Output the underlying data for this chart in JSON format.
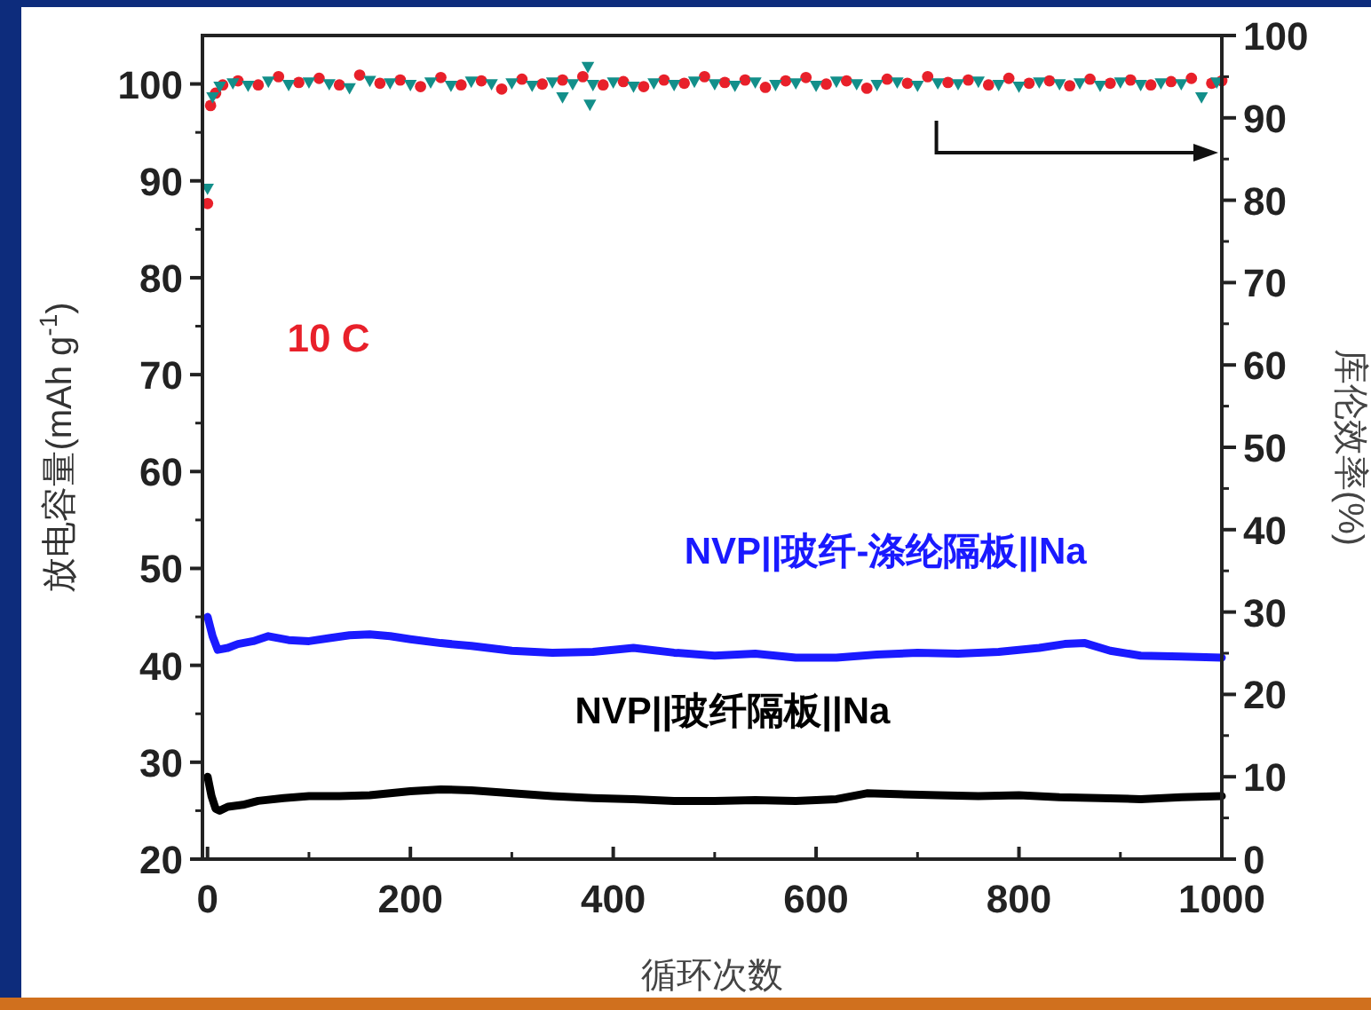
{
  "chart_data": {
    "type": "line",
    "xlabel": "循环次数",
    "ylabel": "放电容量(mAh g$^{-1}$)",
    "y2label": "库伦效率(%)",
    "annotations": [
      "10 C"
    ],
    "xlim": [
      -5,
      1000
    ],
    "xticks": [
      0,
      200,
      400,
      600,
      800,
      1000
    ],
    "ylim": [
      20,
      105
    ],
    "yticks": [
      20,
      30,
      40,
      50,
      60,
      70,
      80,
      90,
      100
    ],
    "y2lim": [
      0,
      100
    ],
    "y2ticks": [
      0,
      10,
      20,
      30,
      40,
      50,
      60,
      70,
      80,
      90,
      100
    ],
    "grid": false,
    "series": [
      {
        "name": "NVP||玻纤-涤纶隔板||Na",
        "marker": "none",
        "color": "#1a1aff",
        "x": [
          0,
          5,
          10,
          20,
          30,
          45,
          60,
          80,
          100,
          120,
          140,
          160,
          180,
          200,
          230,
          260,
          300,
          340,
          380,
          420,
          460,
          500,
          540,
          580,
          620,
          660,
          700,
          740,
          780,
          820,
          845,
          865,
          890,
          920,
          960,
          1000
        ],
        "values": [
          45,
          43,
          41.6,
          41.8,
          42.2,
          42.5,
          43,
          42.6,
          42.5,
          42.8,
          43.1,
          43.2,
          43,
          42.7,
          42.3,
          42,
          41.5,
          41.3,
          41.4,
          41.8,
          41.3,
          41,
          41.2,
          40.8,
          40.8,
          41.1,
          41.3,
          41.2,
          41.4,
          41.8,
          42.2,
          42.3,
          41.5,
          41,
          40.9,
          40.8
        ]
      },
      {
        "name": "NVP||玻纤隔板||Na",
        "marker": "none",
        "color": "#000000",
        "x": [
          0,
          4,
          8,
          12,
          20,
          35,
          50,
          75,
          100,
          130,
          160,
          200,
          230,
          260,
          300,
          340,
          380,
          420,
          460,
          500,
          540,
          580,
          620,
          650,
          680,
          720,
          760,
          800,
          840,
          880,
          920,
          960,
          1000
        ],
        "values": [
          28.5,
          26.5,
          25.2,
          25,
          25.4,
          25.6,
          26,
          26.3,
          26.5,
          26.5,
          26.6,
          27,
          27.2,
          27.1,
          26.8,
          26.5,
          26.3,
          26.2,
          26,
          26,
          26.1,
          26,
          26.2,
          26.8,
          26.7,
          26.6,
          26.5,
          26.6,
          26.4,
          26.3,
          26.2,
          26.4,
          26.5
        ]
      },
      {
        "type": "scatter",
        "axis": "y2",
        "marker": "circle",
        "color": "#e8202a",
        "x": [
          0,
          3,
          8,
          15,
          30,
          50,
          70,
          90,
          110,
          130,
          150,
          170,
          190,
          210,
          230,
          250,
          270,
          290,
          310,
          330,
          350,
          370,
          390,
          410,
          430,
          450,
          470,
          490,
          510,
          530,
          550,
          570,
          590,
          610,
          630,
          650,
          670,
          690,
          710,
          730,
          750,
          770,
          790,
          810,
          830,
          850,
          870,
          890,
          910,
          930,
          950,
          970,
          990,
          1000
        ],
        "values": [
          79.6,
          91.5,
          93,
          94,
          94.5,
          94,
          95,
          94.3,
          94.8,
          94,
          95.2,
          94.2,
          94.6,
          93.8,
          94.9,
          94,
          94.5,
          93.5,
          94.7,
          94.1,
          94.6,
          95,
          94,
          94.4,
          93.8,
          94.6,
          94.2,
          95,
          94.3,
          94.6,
          93.7,
          94.5,
          94.9,
          94.1,
          94.5,
          93.6,
          94.7,
          94.2,
          95,
          94.3,
          94.6,
          94,
          94.8,
          94.2,
          94.5,
          93.9,
          94.7,
          94.2,
          94.6,
          94,
          94.4,
          94.8,
          94.2,
          94.5
        ]
      },
      {
        "type": "scatter",
        "axis": "y2",
        "marker": "triangle",
        "color": "#138f8a",
        "x": [
          0,
          5,
          12,
          25,
          40,
          60,
          80,
          100,
          120,
          140,
          160,
          180,
          200,
          220,
          240,
          260,
          280,
          300,
          320,
          340,
          350,
          360,
          375,
          377,
          380,
          400,
          420,
          440,
          460,
          480,
          500,
          520,
          540,
          560,
          580,
          600,
          620,
          640,
          660,
          680,
          700,
          720,
          740,
          760,
          780,
          800,
          820,
          840,
          860,
          880,
          900,
          920,
          940,
          960,
          980,
          995
        ],
        "values": [
          81.4,
          92.5,
          93.8,
          94.2,
          93.9,
          94.4,
          94,
          94.3,
          94.1,
          93.6,
          94.5,
          94.2,
          94,
          94.3,
          93.9,
          94.4,
          94.1,
          94.2,
          93.9,
          94.3,
          92.5,
          94.1,
          96.2,
          91.6,
          94,
          94.3,
          93.8,
          94.2,
          94,
          94.4,
          94.1,
          93.9,
          94.3,
          94,
          94.2,
          93.9,
          94.4,
          94.1,
          94,
          94.3,
          93.9,
          94.2,
          94.1,
          94.4,
          94,
          93.8,
          94.3,
          94.1,
          94.2,
          93.9,
          94.3,
          94,
          94.2,
          94.1,
          92.5,
          94.3
        ]
      }
    ]
  }
}
